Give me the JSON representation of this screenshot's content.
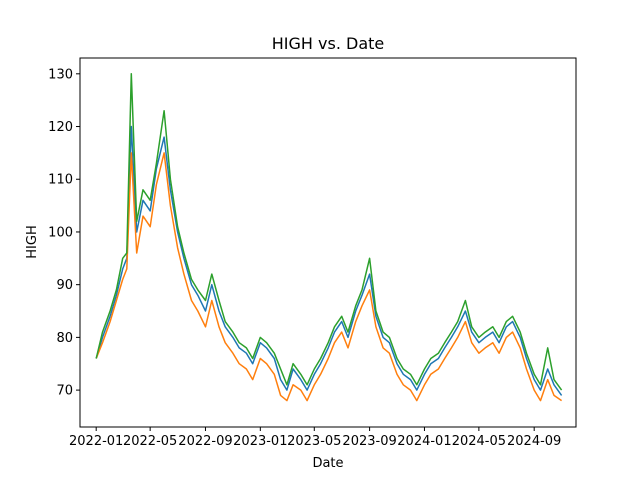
{
  "chart_data": {
    "type": "line",
    "title": "HIGH vs. Date",
    "xlabel": "Date",
    "ylabel": "HIGH",
    "xlim": [
      "2021-11-26",
      "2024-12-03"
    ],
    "ylim": [
      63,
      133
    ],
    "x_ticks": [
      "2022-01",
      "2022-05",
      "2022-09",
      "2023-01",
      "2023-05",
      "2023-09",
      "2024-01",
      "2024-05",
      "2024-09"
    ],
    "y_ticks": [
      70,
      80,
      90,
      100,
      110,
      120,
      130
    ],
    "grid": false,
    "legend": "none",
    "colors": [
      "#1f77b4",
      "#ff7f0e",
      "#2ca02c"
    ],
    "series": [
      {
        "x": [
          "2022-01-01",
          "2022-01-15",
          "2022-02-01",
          "2022-02-15",
          "2022-03-01",
          "2022-03-10",
          "2022-03-20",
          "2022-04-01",
          "2022-04-15",
          "2022-05-01",
          "2022-05-15",
          "2022-06-01",
          "2022-06-15",
          "2022-07-01",
          "2022-07-15",
          "2022-08-01",
          "2022-08-15",
          "2022-09-01",
          "2022-09-15",
          "2022-10-01",
          "2022-10-15",
          "2022-11-01",
          "2022-11-15",
          "2022-12-01",
          "2022-12-15",
          "2023-01-01",
          "2023-01-15",
          "2023-02-01",
          "2023-02-15",
          "2023-03-01",
          "2023-03-15",
          "2023-04-01",
          "2023-04-15",
          "2023-05-01",
          "2023-05-15",
          "2023-06-01",
          "2023-06-15",
          "2023-07-01",
          "2023-07-15",
          "2023-08-01",
          "2023-08-15",
          "2023-09-01",
          "2023-09-15",
          "2023-10-01",
          "2023-10-15",
          "2023-11-01",
          "2023-11-15",
          "2023-12-01",
          "2023-12-15",
          "2024-01-01",
          "2024-01-15",
          "2024-02-01",
          "2024-02-15",
          "2024-03-01",
          "2024-03-15",
          "2024-04-01",
          "2024-04-15",
          "2024-05-01",
          "2024-05-15",
          "2024-06-01",
          "2024-06-15",
          "2024-07-01",
          "2024-07-15",
          "2024-08-01",
          "2024-08-15",
          "2024-09-01",
          "2024-09-15",
          "2024-10-01",
          "2024-10-15",
          "2024-11-01"
        ],
        "values": [
          76,
          80,
          84,
          88,
          93,
          95,
          120,
          100,
          106,
          104,
          112,
          118,
          108,
          100,
          95,
          90,
          88,
          85,
          90,
          85,
          82,
          80,
          78,
          77,
          75,
          79,
          78,
          76,
          72,
          70,
          74,
          72,
          70,
          73,
          75,
          78,
          81,
          83,
          80,
          85,
          88,
          92,
          84,
          80,
          79,
          75,
          73,
          72,
          70,
          73,
          75,
          76,
          78,
          80,
          82,
          85,
          81,
          79,
          80,
          81,
          79,
          82,
          83,
          80,
          76,
          72,
          70,
          74,
          71,
          69
        ]
      },
      {
        "x": [
          "2022-01-01",
          "2022-01-15",
          "2022-02-01",
          "2022-02-15",
          "2022-03-01",
          "2022-03-10",
          "2022-03-20",
          "2022-04-01",
          "2022-04-15",
          "2022-05-01",
          "2022-05-15",
          "2022-06-01",
          "2022-06-15",
          "2022-07-01",
          "2022-07-15",
          "2022-08-01",
          "2022-08-15",
          "2022-09-01",
          "2022-09-15",
          "2022-10-01",
          "2022-10-15",
          "2022-11-01",
          "2022-11-15",
          "2022-12-01",
          "2022-12-15",
          "2023-01-01",
          "2023-01-15",
          "2023-02-01",
          "2023-02-15",
          "2023-03-01",
          "2023-03-15",
          "2023-04-01",
          "2023-04-15",
          "2023-05-01",
          "2023-05-15",
          "2023-06-01",
          "2023-06-15",
          "2023-07-01",
          "2023-07-15",
          "2023-08-01",
          "2023-08-15",
          "2023-09-01",
          "2023-09-15",
          "2023-10-01",
          "2023-10-15",
          "2023-11-01",
          "2023-11-15",
          "2023-12-01",
          "2023-12-15",
          "2024-01-01",
          "2024-01-15",
          "2024-02-01",
          "2024-02-15",
          "2024-03-01",
          "2024-03-15",
          "2024-04-01",
          "2024-04-15",
          "2024-05-01",
          "2024-05-15",
          "2024-06-01",
          "2024-06-15",
          "2024-07-01",
          "2024-07-15",
          "2024-08-01",
          "2024-08-15",
          "2024-09-01",
          "2024-09-15",
          "2024-10-01",
          "2024-10-15",
          "2024-11-01"
        ],
        "values": [
          76,
          79,
          83,
          87,
          91,
          93,
          115,
          96,
          103,
          101,
          109,
          115,
          105,
          97,
          92,
          87,
          85,
          82,
          87,
          82,
          79,
          77,
          75,
          74,
          72,
          76,
          75,
          73,
          69,
          68,
          71,
          70,
          68,
          71,
          73,
          76,
          79,
          81,
          78,
          83,
          86,
          89,
          82,
          78,
          77,
          73,
          71,
          70,
          68,
          71,
          73,
          74,
          76,
          78,
          80,
          83,
          79,
          77,
          78,
          79,
          77,
          80,
          81,
          78,
          74,
          70,
          68,
          72,
          69,
          68
        ]
      },
      {
        "x": [
          "2022-01-01",
          "2022-01-15",
          "2022-02-01",
          "2022-02-15",
          "2022-03-01",
          "2022-03-10",
          "2022-03-20",
          "2022-04-01",
          "2022-04-15",
          "2022-05-01",
          "2022-05-15",
          "2022-06-01",
          "2022-06-15",
          "2022-07-01",
          "2022-07-15",
          "2022-08-01",
          "2022-08-15",
          "2022-09-01",
          "2022-09-15",
          "2022-10-01",
          "2022-10-15",
          "2022-11-01",
          "2022-11-15",
          "2022-12-01",
          "2022-12-15",
          "2023-01-01",
          "2023-01-15",
          "2023-02-01",
          "2023-02-15",
          "2023-03-01",
          "2023-03-15",
          "2023-04-01",
          "2023-04-15",
          "2023-05-01",
          "2023-05-15",
          "2023-06-01",
          "2023-06-15",
          "2023-07-01",
          "2023-07-15",
          "2023-08-01",
          "2023-08-15",
          "2023-09-01",
          "2023-09-15",
          "2023-10-01",
          "2023-10-15",
          "2023-11-01",
          "2023-11-15",
          "2023-12-01",
          "2023-12-15",
          "2024-01-01",
          "2024-01-15",
          "2024-02-01",
          "2024-02-15",
          "2024-03-01",
          "2024-03-15",
          "2024-04-01",
          "2024-04-15",
          "2024-05-01",
          "2024-05-15",
          "2024-06-01",
          "2024-06-15",
          "2024-07-01",
          "2024-07-15",
          "2024-08-01",
          "2024-08-15",
          "2024-09-01",
          "2024-09-15",
          "2024-10-01",
          "2024-10-15",
          "2024-11-01"
        ],
        "values": [
          76,
          81,
          85,
          89,
          95,
          96,
          130,
          102,
          108,
          106,
          113,
          123,
          110,
          101,
          96,
          91,
          89,
          87,
          92,
          87,
          83,
          81,
          79,
          78,
          76,
          80,
          79,
          77,
          74,
          71,
          75,
          73,
          71,
          74,
          76,
          79,
          82,
          84,
          81,
          86,
          89,
          95,
          85,
          81,
          80,
          76,
          74,
          73,
          71,
          74,
          76,
          77,
          79,
          81,
          83,
          87,
          82,
          80,
          81,
          82,
          80,
          83,
          84,
          81,
          77,
          73,
          71,
          78,
          72,
          70
        ]
      }
    ]
  }
}
